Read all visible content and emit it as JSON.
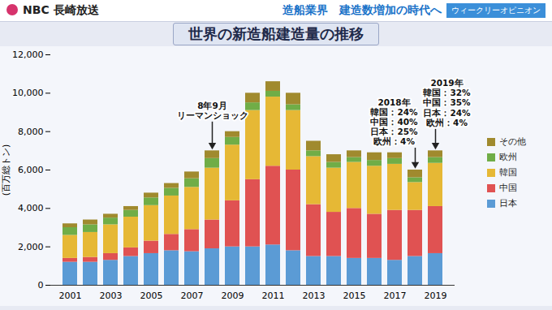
{
  "header": {
    "broadcaster": "NBC 長崎放送",
    "topic": "造船業界　建造数増加の時代へ",
    "corner": "ウィークリーオピニオン"
  },
  "chart_data": {
    "type": "bar",
    "stacked": true,
    "title": "世界の新造船建造量の推移",
    "y_label": "(百万総トン)",
    "categories": [
      "2001",
      null,
      "2003",
      null,
      "2005",
      null,
      "2007",
      null,
      "2009",
      null,
      "2011",
      null,
      "2013",
      null,
      "2015",
      null,
      "2017",
      null,
      "2019"
    ],
    "series": [
      {
        "name": "日本",
        "color": "#5b9bd5",
        "values": [
          1200,
          1200,
          1300,
          1500,
          1650,
          1800,
          1750,
          1900,
          2000,
          2000,
          2100,
          1800,
          1500,
          1500,
          1400,
          1400,
          1300,
          1500,
          1650
        ]
      },
      {
        "name": "中国",
        "color": "#e05252",
        "values": [
          200,
          250,
          350,
          450,
          650,
          850,
          1150,
          1500,
          2400,
          3500,
          4100,
          4200,
          2700,
          2300,
          2600,
          2300,
          2600,
          2400,
          2450
        ]
      },
      {
        "name": "韓国",
        "color": "#e6b835",
        "values": [
          1200,
          1300,
          1500,
          1600,
          1850,
          2000,
          2200,
          2700,
          2900,
          3600,
          3600,
          3100,
          2500,
          2300,
          2400,
          2500,
          2400,
          1450,
          2250
        ]
      },
      {
        "name": "欧州",
        "color": "#70ad47",
        "values": [
          400,
          400,
          350,
          350,
          400,
          400,
          450,
          500,
          400,
          400,
          300,
          300,
          300,
          300,
          250,
          300,
          300,
          250,
          300
        ]
      },
      {
        "name": "その他",
        "color": "#a08a2e",
        "values": [
          200,
          250,
          200,
          200,
          250,
          250,
          350,
          400,
          300,
          500,
          500,
          600,
          500,
          400,
          350,
          400,
          300,
          400,
          350
        ]
      }
    ],
    "ylim": [
      0,
      12000
    ],
    "yticks": [
      0,
      {
        "value": 2000,
        "label": "2,000"
      },
      {
        "value": 4000,
        "label": "4,000"
      },
      {
        "value": 6000,
        "label": "6,000"
      },
      {
        "value": 8000,
        "label": "8,000"
      },
      {
        "value": 10000,
        "label": "10,000"
      },
      {
        "value": 12000,
        "label": "12,000"
      }
    ],
    "grid": false,
    "legend": "right",
    "annotations": [
      "8年9月\nリーマンショック",
      "2018年\n韓国：24%\n中国：40%\n日本：25%\n欧州：4%",
      "2019年\n韓国：32%\n中国：35%\n日本：24%\n欧州：4%"
    ]
  }
}
